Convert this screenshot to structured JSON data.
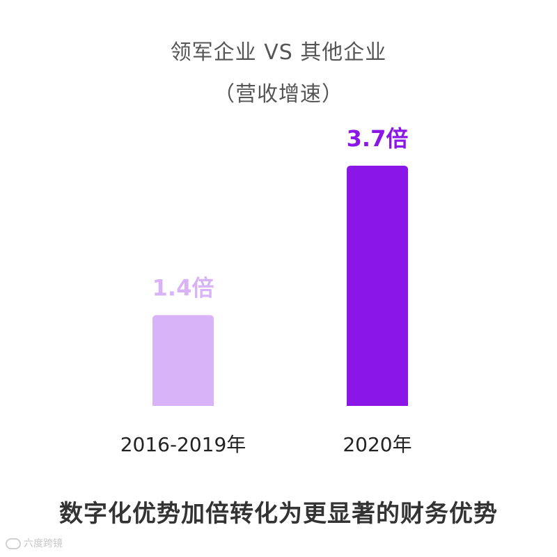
{
  "chart_data": {
    "type": "bar",
    "title": "领军企业 VS 其他企业",
    "subtitle": "（营收增速）",
    "categories": [
      "2016-2019年",
      "2020年"
    ],
    "values": [
      1.4,
      3.7
    ],
    "data_labels": [
      "1.4倍",
      "3.7倍"
    ],
    "unit": "倍",
    "colors": [
      "#d9b3f7",
      "#8a16e8"
    ],
    "ylim": [
      0,
      4
    ],
    "grid": false,
    "legend": "none",
    "xlabel": "",
    "ylabel": ""
  },
  "footnote": "数字化优势加倍转化为更显著的财务优势",
  "watermark": "六度跨镜"
}
